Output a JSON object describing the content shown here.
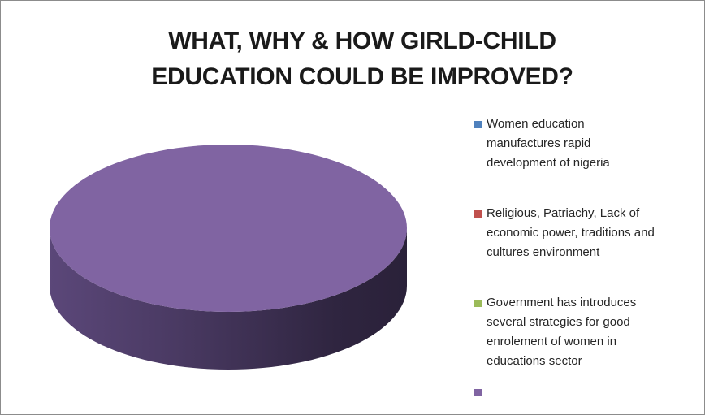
{
  "chart_data": {
    "type": "pie",
    "title_lines": [
      "WHAT, WHY & HOW GIRLD-CHILD",
      "EDUCATION COULD BE IMPROVED?"
    ],
    "categories": [
      "Women education\nmanufactures rapid\ndevelopment of nigeria",
      " Religious, Patriachy, Lack of\neconomic power, traditions and\ncultures environment",
      "Government has introduces\nseveral strategies for good\nenrolement of women in\neducations sector",
      ""
    ],
    "values": [
      0,
      0,
      0,
      100
    ],
    "colors": [
      "#4f81bd",
      "#c0504d",
      "#9bbb59",
      "#8064a2"
    ],
    "style": "3d",
    "legend_position": "right"
  }
}
